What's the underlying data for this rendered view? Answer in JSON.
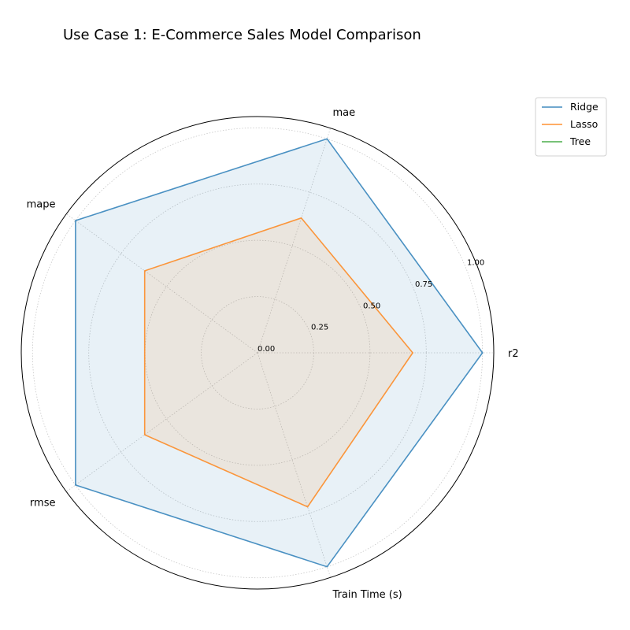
{
  "chart_data": {
    "type": "radar",
    "title": "Use Case 1: E-Commerce Sales Model Comparison",
    "axes": [
      "r2",
      "mae",
      "mape",
      "rmse",
      "Train Time (s)"
    ],
    "rlim": [
      0,
      1.05
    ],
    "r_ticks": [
      "0.00",
      "0.25",
      "0.50",
      "0.75",
      "1.00"
    ],
    "r_tick_values": [
      0,
      0.25,
      0.5,
      0.75,
      1.0
    ],
    "grid": true,
    "legend_position": "upper-right-outside",
    "series": [
      {
        "name": "Ridge",
        "color": "#1f77b4",
        "values": [
          1.0,
          1.0,
          1.0,
          1.0,
          1.0
        ]
      },
      {
        "name": "Lasso",
        "color": "#ff7f0e",
        "values": [
          0.69,
          0.63,
          0.62,
          0.62,
          0.72
        ]
      },
      {
        "name": "Tree",
        "color": "#2ca02c",
        "values": [
          0,
          0,
          0,
          0,
          0
        ]
      }
    ]
  }
}
